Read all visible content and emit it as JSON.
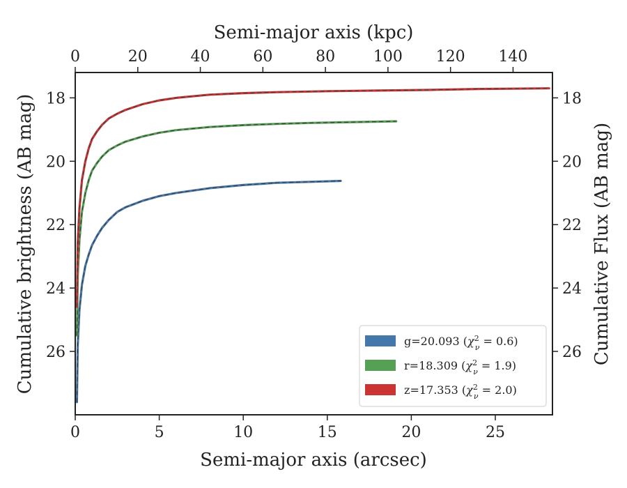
{
  "chart_data": {
    "type": "line",
    "xlabel": "Semi-major axis (arcsec)",
    "x2label": "Semi-major axis (kpc)",
    "ylabel": "Cumulative brightness (AB mag)",
    "y2label": "Cumulative Flux (AB mag)",
    "xlim": [
      0,
      28.4
    ],
    "x2lim": [
      0,
      152.6
    ],
    "ylim": [
      28.0,
      17.2
    ],
    "y_inverted": true,
    "x_ticks": [
      "0",
      "5",
      "10",
      "15",
      "20",
      "25"
    ],
    "x2_ticks": [
      "0",
      "20",
      "40",
      "60",
      "80",
      "100",
      "120",
      "140"
    ],
    "y_ticks": [
      "18",
      "20",
      "22",
      "24",
      "26"
    ],
    "y2_ticks": [
      "18",
      "20",
      "22",
      "24",
      "26"
    ],
    "legend_position": "lower-right",
    "series": [
      {
        "name": "g=20.093 (χ²ᵥ = 0.6)",
        "band": "g",
        "color": "#4477aa",
        "x": [
          0.1,
          0.15,
          0.25,
          0.4,
          0.6,
          0.8,
          1.0,
          1.3,
          1.6,
          2.0,
          2.5,
          3.0,
          4.0,
          5.0,
          6.0,
          8.0,
          10.0,
          12.0,
          14.0,
          15.8
        ],
        "y": [
          27.6,
          25.8,
          24.7,
          23.9,
          23.3,
          22.95,
          22.65,
          22.35,
          22.1,
          21.85,
          21.6,
          21.45,
          21.25,
          21.1,
          21.0,
          20.85,
          20.75,
          20.68,
          20.65,
          20.62
        ]
      },
      {
        "name": "r=18.309 (χ²ᵥ = 1.9)",
        "band": "r",
        "color": "#55a055",
        "x": [
          0.1,
          0.15,
          0.25,
          0.4,
          0.6,
          0.8,
          1.0,
          1.3,
          1.6,
          2.0,
          2.5,
          3.0,
          4.0,
          5.0,
          6.0,
          8.0,
          10.0,
          12.0,
          14.0,
          16.0,
          18.0,
          19.1
        ],
        "y": [
          25.5,
          23.6,
          22.5,
          21.6,
          21.0,
          20.6,
          20.3,
          20.05,
          19.85,
          19.65,
          19.5,
          19.38,
          19.22,
          19.1,
          19.02,
          18.92,
          18.86,
          18.82,
          18.79,
          18.77,
          18.75,
          18.74
        ]
      },
      {
        "name": "z=17.353 (χ²ᵥ = 2.0)",
        "band": "z",
        "color": "#cc3333",
        "x": [
          0.1,
          0.15,
          0.25,
          0.4,
          0.6,
          0.8,
          1.0,
          1.3,
          1.6,
          2.0,
          2.5,
          3.0,
          4.0,
          5.0,
          6.0,
          8.0,
          10.0,
          12.0,
          15.0,
          18.0,
          21.0,
          24.0,
          26.0,
          28.2
        ],
        "y": [
          24.6,
          22.6,
          21.5,
          20.6,
          20.0,
          19.6,
          19.3,
          19.05,
          18.85,
          18.65,
          18.5,
          18.38,
          18.2,
          18.08,
          18.0,
          17.9,
          17.85,
          17.82,
          17.79,
          17.77,
          17.75,
          17.72,
          17.71,
          17.7
        ]
      }
    ]
  },
  "legend": [
    {
      "band": "g",
      "value": "=20.093 ",
      "chi_open": "(",
      "chi_symbol": "χ",
      "chi_sup": "2",
      "chi_sub": "ν",
      "chi_val": " = 0.6)",
      "color": "#4477aa"
    },
    {
      "band": "r",
      "value": "=18.309 ",
      "chi_open": "(",
      "chi_symbol": "χ",
      "chi_sup": "2",
      "chi_sub": "ν",
      "chi_val": " = 1.9)",
      "color": "#55a055"
    },
    {
      "band": "z",
      "value": "=17.353 ",
      "chi_open": "(",
      "chi_symbol": "χ",
      "chi_sup": "2",
      "chi_sub": "ν",
      "chi_val": " = 2.0)",
      "color": "#cc3333"
    }
  ],
  "model_line_color": "#444444"
}
